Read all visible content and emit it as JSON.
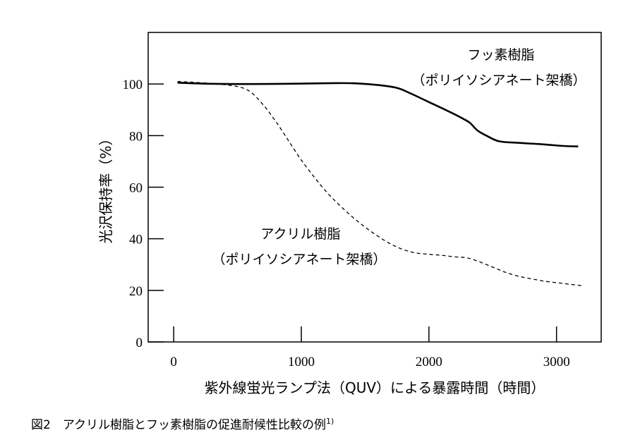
{
  "chart_data": {
    "type": "line",
    "xlabel": "紫外線蛍光ランプ法（QUV）による暴露時間（時間）",
    "ylabel": "光沢保持率（%）",
    "xlim": [
      -200,
      3350
    ],
    "ylim": [
      0,
      120
    ],
    "xticks": [
      0,
      1000,
      2000,
      3000
    ],
    "yticks": [
      0,
      20,
      40,
      60,
      80,
      100
    ],
    "grid": false,
    "legend": "none",
    "series": [
      {
        "name": "フッ素樹脂",
        "name_line2": "（ポリイソシアネート架橋）",
        "style": "solid",
        "color": "#000000",
        "x": [
          30,
          300,
          600,
          900,
          1200,
          1400,
          1600,
          1750,
          1850,
          2000,
          2150,
          2250,
          2320,
          2380,
          2450,
          2550,
          2700,
          2900,
          3050,
          3170
        ],
        "y": [
          100.5,
          100.1,
          100.0,
          100.1,
          100.3,
          100.3,
          99.6,
          98.5,
          96.5,
          93.0,
          89.5,
          87.0,
          85.0,
          82.0,
          80.0,
          77.8,
          77.2,
          76.6,
          76.0,
          75.8
        ]
      },
      {
        "name": "アクリル樹脂",
        "name_line2": "（ポリイソシアネート架橋）",
        "style": "dashed",
        "color": "#000000",
        "x": [
          30,
          300,
          500,
          600,
          700,
          800,
          900,
          1000,
          1100,
          1200,
          1300,
          1400,
          1500,
          1600,
          1700,
          1800,
          1900,
          2000,
          2100,
          2200,
          2300,
          2400,
          2500,
          2600,
          2700,
          2800,
          2900,
          3000,
          3100,
          3200
        ],
        "y": [
          101.0,
          100.2,
          99.0,
          97.0,
          92.0,
          85.5,
          78.0,
          70.5,
          64.0,
          58.0,
          53.0,
          48.5,
          44.5,
          41.0,
          38.0,
          35.8,
          34.5,
          34.0,
          33.6,
          33.0,
          32.6,
          31.0,
          29.0,
          27.0,
          25.5,
          24.5,
          23.6,
          23.0,
          22.4,
          21.8
        ]
      }
    ]
  },
  "caption": {
    "text": "図2　アクリル樹脂とフッ素樹脂の促進耐候性比較の例",
    "ref": "1)"
  }
}
